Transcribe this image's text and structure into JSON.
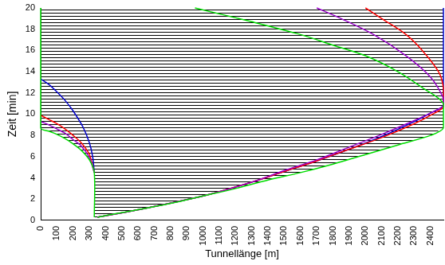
{
  "chart_data": {
    "type": "line",
    "x_label": "Tunnellänge [m]",
    "y_label": "Zeit [min]",
    "xlim": [
      0,
      2480
    ],
    "xticks": [
      0,
      100,
      200,
      300,
      400,
      500,
      600,
      700,
      800,
      900,
      1000,
      1100,
      1200,
      1300,
      1400,
      1500,
      1600,
      1700,
      1800,
      1900,
      2000,
      2100,
      2200,
      2300,
      2400
    ],
    "ylim": [
      0,
      20
    ],
    "yticks": [
      0,
      2,
      4,
      6,
      8,
      10,
      12,
      14,
      16,
      18,
      20
    ],
    "grid": false,
    "marker": "none",
    "line_style": "solid",
    "series": [
      {
        "color": "#00dd00",
        "x": [
          330,
          330,
          300,
          250,
          200,
          150,
          100,
          50,
          0,
          0
        ],
        "values": [
          0.3,
          4.5,
          5.7,
          6.6,
          7.2,
          7.7,
          8.1,
          8.4,
          8.7,
          20
        ]
      },
      {
        "color": "#00dd00",
        "x": [
          350,
          450,
          600,
          800,
          1000,
          1200,
          1400,
          1600,
          1800,
          2000,
          2200,
          2400,
          2480,
          2480,
          2350,
          2200,
          2000,
          1800,
          1600,
          1300,
          950
        ],
        "values": [
          0.3,
          0.6,
          1.0,
          1.6,
          2.3,
          3.0,
          3.8,
          4.5,
          5.3,
          6.2,
          7.1,
          8.0,
          8.7,
          11.0,
          12.5,
          14.0,
          15.5,
          16.5,
          17.5,
          18.7,
          20
        ]
      },
      {
        "color": "#9900cc",
        "x": [
          330,
          300,
          250,
          200,
          150,
          100,
          50,
          0
        ],
        "values": [
          4.5,
          5.9,
          7.0,
          7.6,
          8.2,
          8.6,
          9.0,
          9.3
        ]
      },
      {
        "color": "#9900cc",
        "x": [
          350,
          600,
          1000,
          1300,
          1500,
          1700,
          1900,
          2100,
          2300,
          2400,
          2480,
          2480,
          2400,
          2250,
          2050,
          1850,
          1700
        ],
        "values": [
          0.3,
          1.0,
          2.3,
          3.6,
          4.7,
          5.7,
          6.9,
          8.1,
          9.4,
          10.1,
          10.8,
          11.5,
          13.5,
          15.5,
          17.5,
          19,
          20
        ]
      },
      {
        "color": "#ff0000",
        "x": [
          330,
          300,
          250,
          200,
          150,
          100,
          50,
          0
        ],
        "values": [
          4.5,
          6.2,
          7.3,
          8.0,
          8.6,
          9.1,
          9.5,
          9.9
        ]
      },
      {
        "color": "#ff0000",
        "x": [
          350,
          600,
          1000,
          1300,
          1500,
          1700,
          1900,
          2100,
          2300,
          2400,
          2480,
          2480,
          2450,
          2350,
          2250,
          2100,
          2000
        ],
        "values": [
          0.3,
          1.0,
          2.3,
          3.6,
          4.6,
          5.6,
          6.7,
          7.8,
          9.1,
          9.9,
          10.7,
          12.5,
          14,
          16,
          17.5,
          19,
          20
        ]
      },
      {
        "color": "#0000cc",
        "x": [
          330,
          320,
          300,
          260,
          200,
          150,
          100,
          50,
          0
        ],
        "values": [
          4.5,
          6.0,
          7.3,
          8.8,
          10.3,
          11.3,
          12.1,
          12.8,
          13.3
        ]
      },
      {
        "color": "#0000cc",
        "x": [
          350,
          600,
          1000,
          1300,
          1500,
          1700,
          1900,
          2100,
          2300,
          2400,
          2480,
          2480
        ],
        "values": [
          0.3,
          1.0,
          2.3,
          3.6,
          4.6,
          5.6,
          6.7,
          7.9,
          9.3,
          10.1,
          10.9,
          20
        ]
      }
    ]
  }
}
